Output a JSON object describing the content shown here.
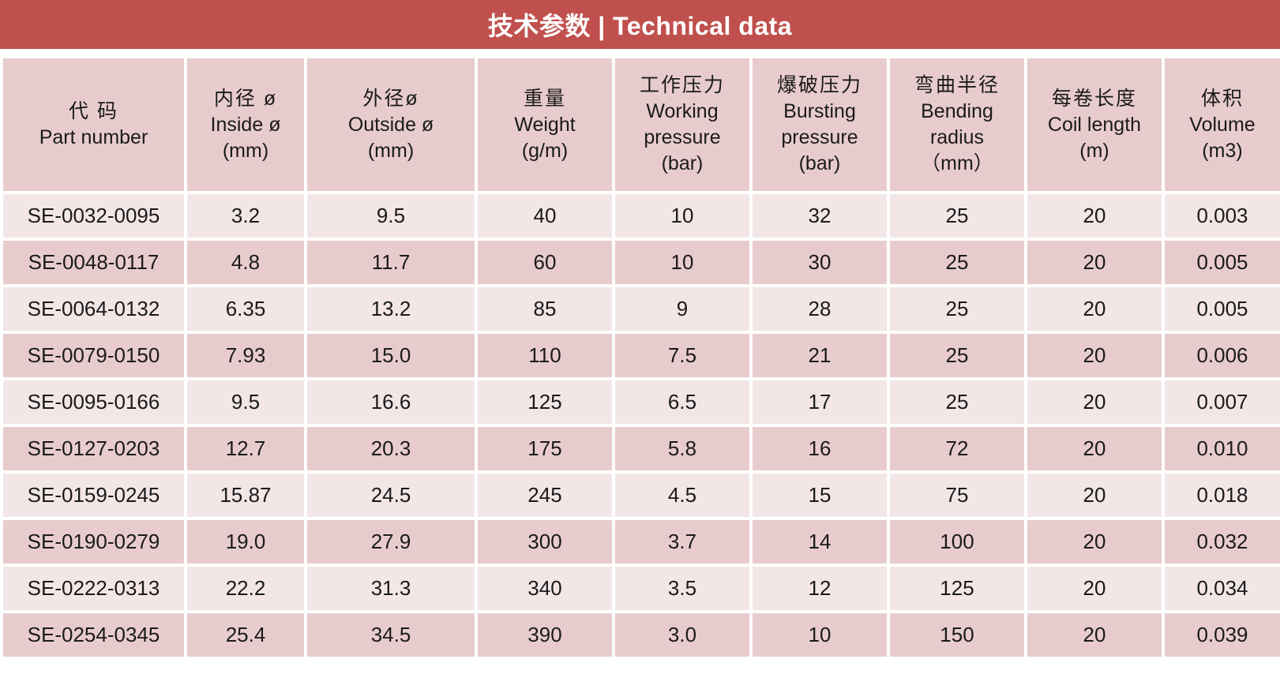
{
  "title": "技术参数 | Technical data",
  "columns": [
    {
      "key": "part",
      "lines": [
        "代 码",
        "Part number"
      ]
    },
    {
      "key": "inside",
      "lines": [
        "内径 ø",
        "Inside ø",
        "(mm)"
      ]
    },
    {
      "key": "outside",
      "lines": [
        "外径ø",
        "Outside ø",
        "(mm)"
      ]
    },
    {
      "key": "weight",
      "lines": [
        "重量",
        "Weight",
        "(g/m)"
      ]
    },
    {
      "key": "working",
      "lines": [
        "工作压力",
        "Working",
        "pressure",
        "(bar)"
      ]
    },
    {
      "key": "bursting",
      "lines": [
        "爆破压力",
        "Bursting",
        "pressure",
        "(bar)"
      ]
    },
    {
      "key": "bending",
      "lines": [
        "弯曲半径",
        "Bending",
        "radius",
        "（mm）"
      ]
    },
    {
      "key": "coil",
      "lines": [
        "每卷长度",
        "Coil length",
        "(m)"
      ]
    },
    {
      "key": "volume",
      "lines": [
        "体积",
        "Volume",
        "(m3)"
      ]
    }
  ],
  "rows": [
    [
      "SE-0032-0095",
      "3.2",
      "9.5",
      "40",
      "10",
      "32",
      "25",
      "20",
      "0.003"
    ],
    [
      "SE-0048-0117",
      "4.8",
      "11.7",
      "60",
      "10",
      "30",
      "25",
      "20",
      "0.005"
    ],
    [
      "SE-0064-0132",
      "6.35",
      "13.2",
      "85",
      "9",
      "28",
      "25",
      "20",
      "0.005"
    ],
    [
      "SE-0079-0150",
      "7.93",
      "15.0",
      "110",
      "7.5",
      "21",
      "25",
      "20",
      "0.006"
    ],
    [
      "SE-0095-0166",
      "9.5",
      "16.6",
      "125",
      "6.5",
      "17",
      "25",
      "20",
      "0.007"
    ],
    [
      "SE-0127-0203",
      "12.7",
      "20.3",
      "175",
      "5.8",
      "16",
      "72",
      "20",
      "0.010"
    ],
    [
      "SE-0159-0245",
      "15.87",
      "24.5",
      "245",
      "4.5",
      "15",
      "75",
      "20",
      "0.018"
    ],
    [
      "SE-0190-0279",
      "19.0",
      "27.9",
      "300",
      "3.7",
      "14",
      "100",
      "20",
      "0.032"
    ],
    [
      "SE-0222-0313",
      "22.2",
      "31.3",
      "340",
      "3.5",
      "12",
      "125",
      "20",
      "0.034"
    ],
    [
      "SE-0254-0345",
      "25.4",
      "34.5",
      "390",
      "3.0",
      "10",
      "150",
      "20",
      "0.039"
    ]
  ],
  "colors": {
    "title_bar": "#c0504d",
    "header_bg": "#e8cccd",
    "row_light": "#f3e6e6",
    "row_dark": "#e8cccd"
  }
}
